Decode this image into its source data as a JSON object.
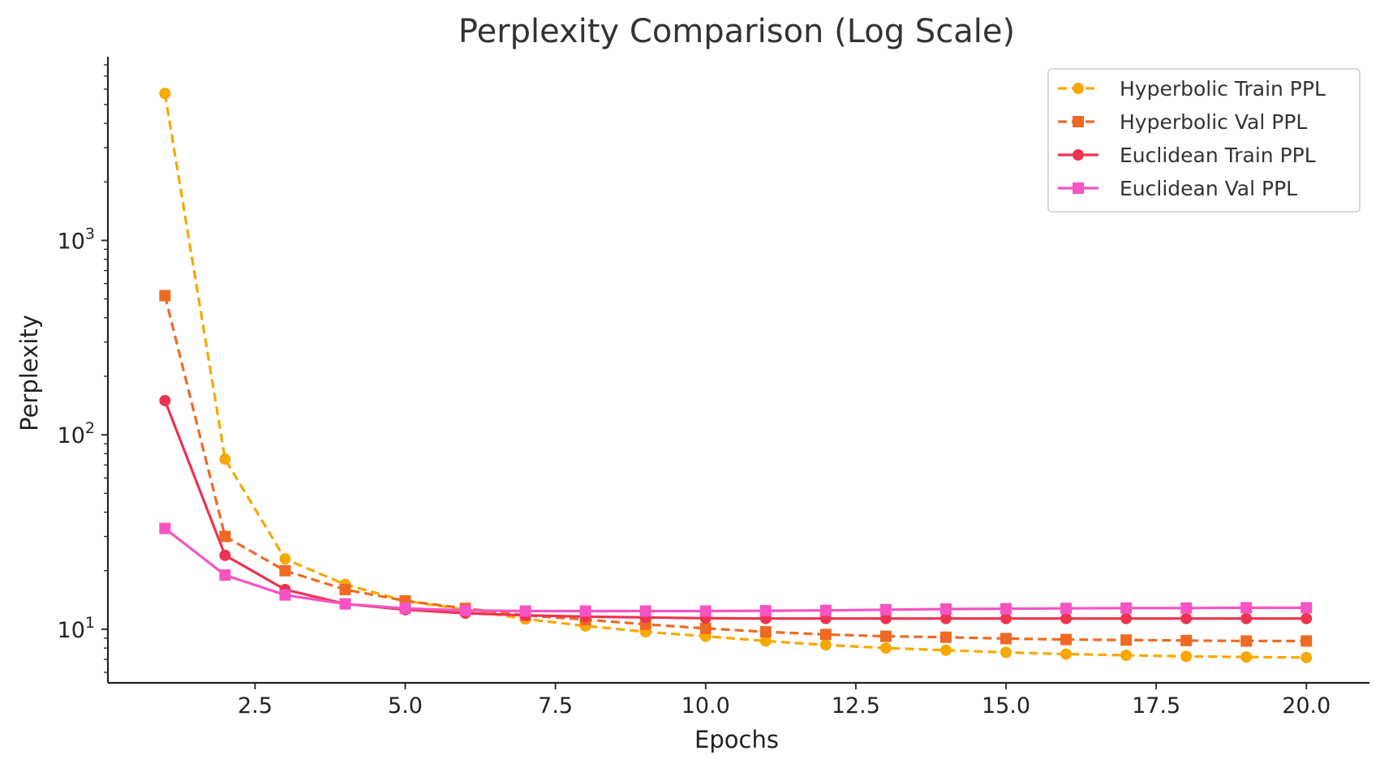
{
  "chart_data": {
    "type": "line",
    "title": "Perplexity Comparison (Log Scale)",
    "xlabel": "Epochs",
    "ylabel": "Perplexity",
    "yscale": "log",
    "xlim": [
      0.05,
      21.05
    ],
    "ylim": [
      5.3,
      8800
    ],
    "xticks": [
      2.5,
      5.0,
      7.5,
      10.0,
      12.5,
      15.0,
      17.5,
      20.0
    ],
    "xtick_labels": [
      "2.5",
      "5.0",
      "7.5",
      "10.0",
      "12.5",
      "15.0",
      "17.5",
      "20.0"
    ],
    "yticks": [
      {
        "value": 10,
        "base": "10",
        "exp": "1"
      },
      {
        "value": 100,
        "base": "10",
        "exp": "2"
      },
      {
        "value": 1000,
        "base": "10",
        "exp": "3"
      }
    ],
    "grid": false,
    "legend_position": "top-right",
    "x": [
      1,
      2,
      3,
      4,
      5,
      6,
      7,
      8,
      9,
      10,
      11,
      12,
      13,
      14,
      15,
      16,
      17,
      18,
      19,
      20
    ],
    "series": [
      {
        "name": "Hyperbolic Train PPL",
        "color": "#F7A800",
        "dash": "dashed",
        "marker": "circle",
        "values": [
          5700,
          75,
          23,
          17,
          14,
          12.6,
          11.3,
          10.4,
          9.7,
          9.2,
          8.7,
          8.3,
          8.0,
          7.8,
          7.6,
          7.45,
          7.35,
          7.25,
          7.2,
          7.15
        ]
      },
      {
        "name": "Hyperbolic Val PPL",
        "color": "#EE6A24",
        "dash": "dashed",
        "marker": "square",
        "values": [
          520,
          30,
          20,
          16,
          14,
          12.8,
          11.8,
          11.2,
          10.6,
          10.1,
          9.7,
          9.4,
          9.2,
          9.1,
          8.95,
          8.85,
          8.8,
          8.75,
          8.7,
          8.7
        ]
      },
      {
        "name": "Euclidean Train PPL",
        "color": "#EE3350",
        "dash": "solid",
        "marker": "circle",
        "values": [
          150,
          24,
          16,
          13.5,
          12.6,
          12.1,
          11.8,
          11.6,
          11.5,
          11.4,
          11.35,
          11.35,
          11.35,
          11.35,
          11.35,
          11.35,
          11.35,
          11.35,
          11.35,
          11.35
        ]
      },
      {
        "name": "Euclidean Val PPL",
        "color": "#F653C3",
        "dash": "solid",
        "marker": "square",
        "values": [
          33,
          19,
          15,
          13.5,
          12.8,
          12.5,
          12.4,
          12.4,
          12.4,
          12.4,
          12.45,
          12.5,
          12.6,
          12.7,
          12.75,
          12.8,
          12.85,
          12.85,
          12.9,
          12.9
        ]
      }
    ]
  }
}
